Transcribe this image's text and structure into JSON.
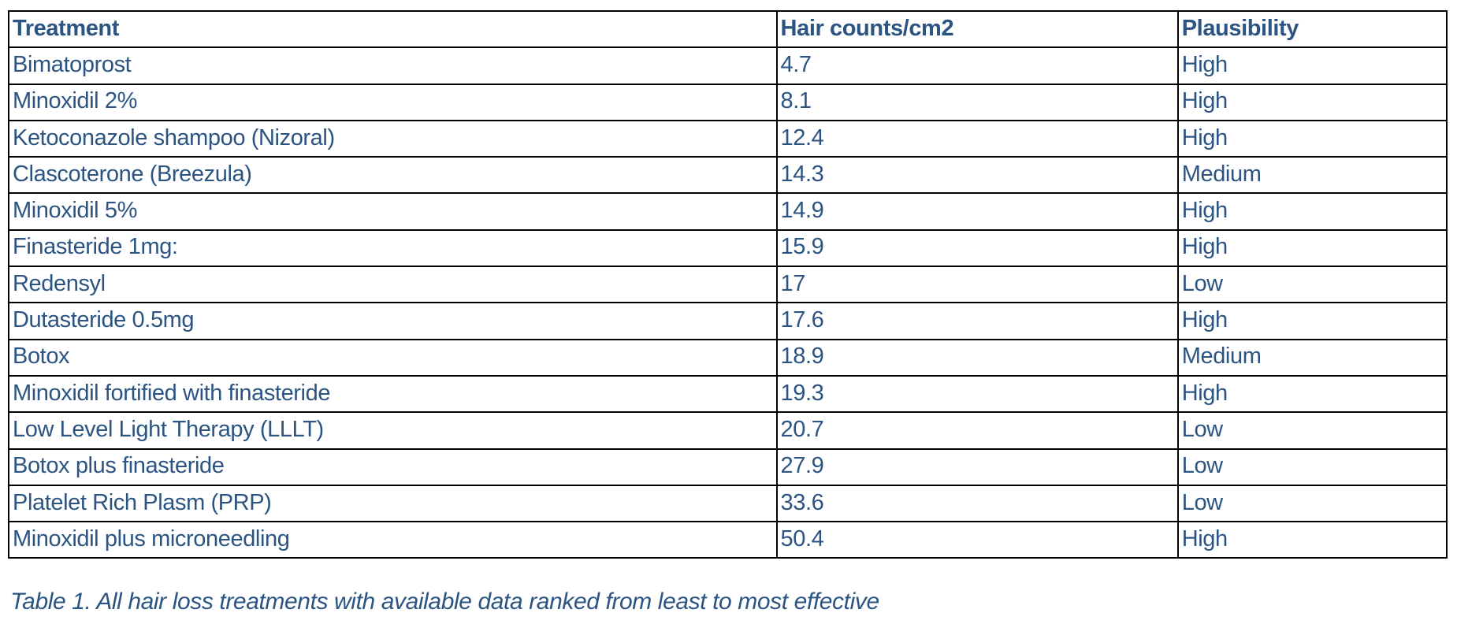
{
  "colors": {
    "text_blue": "#2b5482",
    "border": "#000000",
    "background": "#ffffff"
  },
  "table": {
    "columns": [
      {
        "key": "treatment",
        "label": "Treatment"
      },
      {
        "key": "hair_counts",
        "label": "Hair counts/cm2"
      },
      {
        "key": "plausibility",
        "label": "Plausibility"
      }
    ],
    "rows": [
      {
        "treatment": "Bimatoprost",
        "hair_counts": "4.7",
        "plausibility": "High"
      },
      {
        "treatment": "Minoxidil 2%",
        "hair_counts": "8.1",
        "plausibility": "High"
      },
      {
        "treatment": "Ketoconazole shampoo (Nizoral)",
        "hair_counts": "12.4",
        "plausibility": "High"
      },
      {
        "treatment": "Clascoterone (Breezula)",
        "hair_counts": "14.3",
        "plausibility": "Medium"
      },
      {
        "treatment": "Minoxidil 5%",
        "hair_counts": "14.9",
        "plausibility": "High"
      },
      {
        "treatment": "Finasteride 1mg:",
        "hair_counts": "15.9",
        "plausibility": "High"
      },
      {
        "treatment": "Redensyl",
        "hair_counts": "17",
        "plausibility": "Low"
      },
      {
        "treatment": "Dutasteride 0.5mg",
        "hair_counts": "17.6",
        "plausibility": "High"
      },
      {
        "treatment": "Botox",
        "hair_counts": "18.9",
        "plausibility": "Medium"
      },
      {
        "treatment": "Minoxidil fortified with finasteride",
        "hair_counts": "19.3",
        "plausibility": "High"
      },
      {
        "treatment": "Low Level Light Therapy (LLLT)",
        "hair_counts": "20.7",
        "plausibility": "Low"
      },
      {
        "treatment": "Botox plus finasteride",
        "hair_counts": "27.9",
        "plausibility": "Low"
      },
      {
        "treatment": "Platelet Rich Plasm (PRP)",
        "hair_counts": "33.6",
        "plausibility": "Low"
      },
      {
        "treatment": "Minoxidil plus microneedling",
        "hair_counts": "50.4",
        "plausibility": "High"
      }
    ]
  },
  "caption": "Table 1. All hair loss treatments with available data ranked from least to most effective"
}
